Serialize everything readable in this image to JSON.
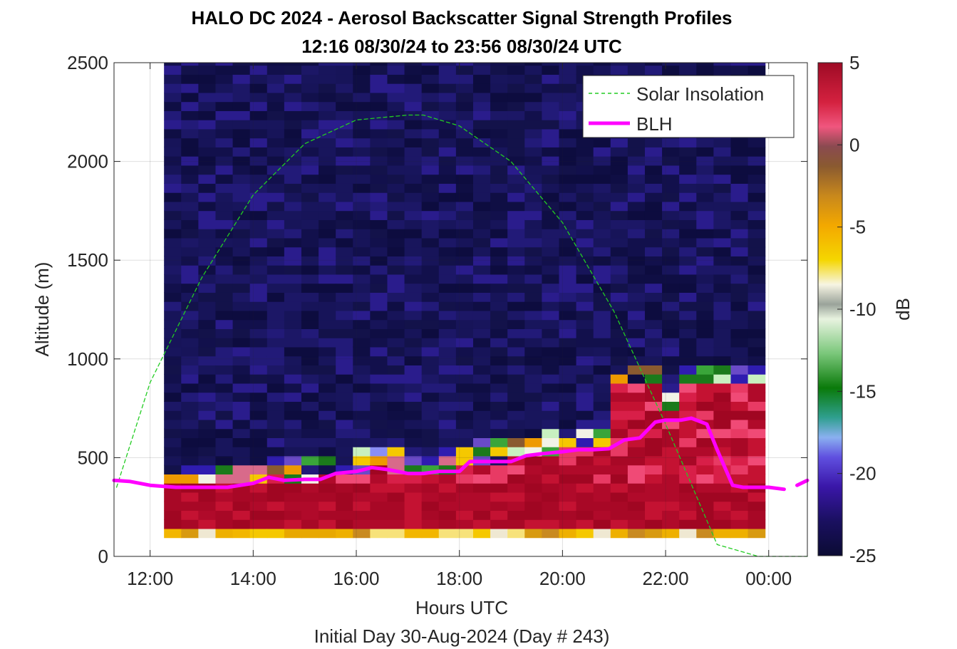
{
  "chart_data": {
    "type": "heatmap",
    "title": "HALO DC 2024 - Aerosol Backscatter Signal Strength Profiles",
    "subtitle": "12:16 08/30/24 to 23:56 08/30/24  UTC",
    "xlabel": "Hours UTC",
    "xlabel2": "Initial Day 30-Aug-2024 (Day # 243)",
    "ylabel": "Altitude (m)",
    "colorbar_label": "dB",
    "xlim": [
      11.3,
      24.75
    ],
    "ylim": [
      0,
      2500
    ],
    "x_ticks": [
      12,
      14,
      16,
      18,
      20,
      22,
      24
    ],
    "x_tick_labels": [
      "12:00",
      "14:00",
      "16:00",
      "18:00",
      "20:00",
      "22:00",
      "00:00"
    ],
    "y_ticks": [
      0,
      500,
      1000,
      1500,
      2000,
      2500
    ],
    "y_tick_labels": [
      "0",
      "500",
      "1000",
      "1500",
      "2000",
      "2500"
    ],
    "clim": [
      -25,
      5
    ],
    "c_ticks": [
      5,
      0,
      -5,
      -10,
      -15,
      -20,
      -25
    ],
    "c_tick_labels": [
      "5",
      "0",
      "-5",
      "-10",
      "-15",
      "-20",
      "-25"
    ],
    "grid": true,
    "legend_position": "top-right",
    "heatmap": {
      "time_start": 12.27,
      "time_end": 23.93,
      "altitude_start": 95,
      "altitude_end": 2500,
      "columns": 35,
      "layers": [
        {
          "from": 95,
          "to": 140,
          "db": -6
        },
        {
          "from": 140,
          "to": 380,
          "db": 4
        },
        {
          "from": 380,
          "to": 2500,
          "db": -24
        }
      ],
      "boundary_layer_top_db": 4,
      "colormap": [
        "#0b0b3b",
        "#3a1ab5",
        "#8a8ef5",
        "#1b7a1b",
        "#f2f2e6",
        "#f5c800",
        "#ee9a00",
        "#b3302a",
        "#f0507a",
        "#b00020"
      ]
    },
    "series": [
      {
        "name": "Solar Insolation",
        "style": "dashed",
        "color": "#22cc22",
        "x": [
          11.35,
          12.0,
          13.0,
          14.0,
          15.0,
          16.0,
          17.0,
          17.3,
          18.0,
          19.0,
          20.0,
          21.0,
          22.0,
          23.0,
          23.8,
          24.0,
          24.75
        ],
        "y": [
          350,
          880,
          1410,
          1830,
          2090,
          2210,
          2235,
          2235,
          2180,
          2000,
          1690,
          1240,
          670,
          60,
          0,
          0,
          0
        ]
      },
      {
        "name": "BLH",
        "style": "solid",
        "color": "#ff00ff",
        "x": [
          11.3,
          11.6,
          12.0,
          12.5,
          13.0,
          13.5,
          14.0,
          14.3,
          14.6,
          15.0,
          15.3,
          15.6,
          16.0,
          16.3,
          16.6,
          17.0,
          17.3,
          17.6,
          17.8,
          18.0,
          18.2,
          18.6,
          19.0,
          19.3,
          19.6,
          20.0,
          20.3,
          20.6,
          20.9,
          21.2,
          21.5,
          21.8,
          22.0,
          22.3,
          22.5,
          22.8,
          23.0,
          23.3,
          23.5,
          23.7,
          24.0,
          24.3
        ],
        "y": [
          385,
          380,
          360,
          350,
          350,
          350,
          370,
          400,
          385,
          390,
          390,
          420,
          430,
          450,
          440,
          420,
          420,
          430,
          430,
          430,
          480,
          480,
          480,
          510,
          520,
          530,
          540,
          540,
          545,
          590,
          600,
          680,
          690,
          690,
          700,
          670,
          540,
          360,
          350,
          350,
          350,
          340
        ]
      },
      {
        "name": "BLH",
        "style": "solid",
        "color": "#ff00ff",
        "x": [
          24.55,
          24.75
        ],
        "y": [
          360,
          385
        ]
      }
    ],
    "legend": [
      {
        "label": "Solar Insolation",
        "style": "dashed",
        "color": "#22cc22"
      },
      {
        "label": "BLH",
        "style": "solid",
        "color": "#ff00ff"
      }
    ]
  }
}
